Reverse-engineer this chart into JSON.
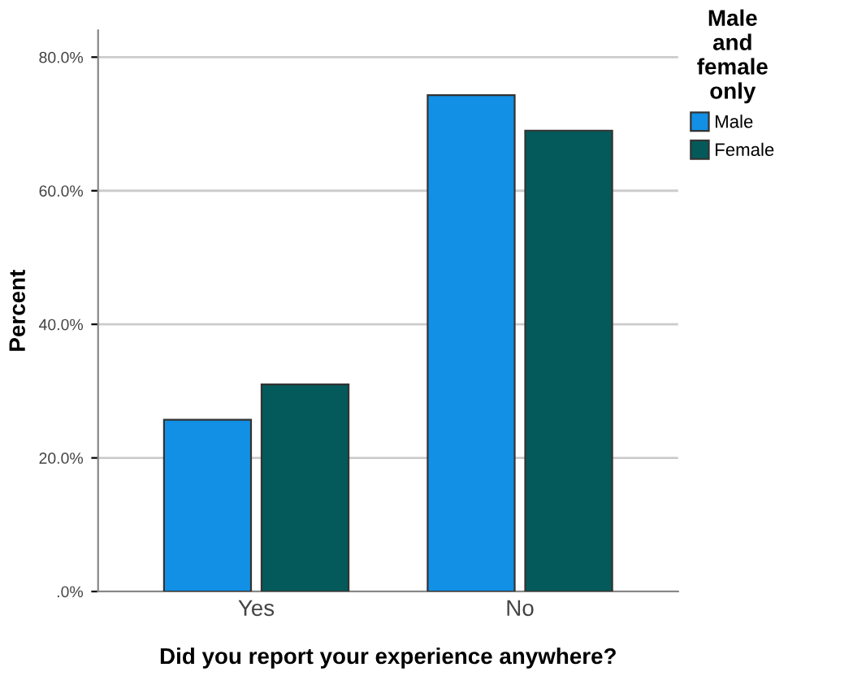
{
  "chart_data": {
    "type": "bar",
    "xlabel": "Did you report your experience anywhere?",
    "ylabel": "Percent",
    "legend_title": "Male\nand\nfemale\nonly",
    "categories": [
      "Yes",
      "No"
    ],
    "series": [
      {
        "name": "Male",
        "color": "#1290e6",
        "values": [
          25.7,
          74.3
        ]
      },
      {
        "name": "Female",
        "color": "#045a5a",
        "values": [
          31.0,
          69.0
        ]
      }
    ],
    "ylim": [
      0,
      84
    ],
    "yticks": [
      {
        "value": 0,
        "label": ".0%"
      },
      {
        "value": 20,
        "label": "20.0%"
      },
      {
        "value": 40,
        "label": "40.0%"
      },
      {
        "value": 60,
        "label": "60.0%"
      },
      {
        "value": 80,
        "label": "80.0%"
      }
    ],
    "grid": "y",
    "legend": "top right"
  }
}
